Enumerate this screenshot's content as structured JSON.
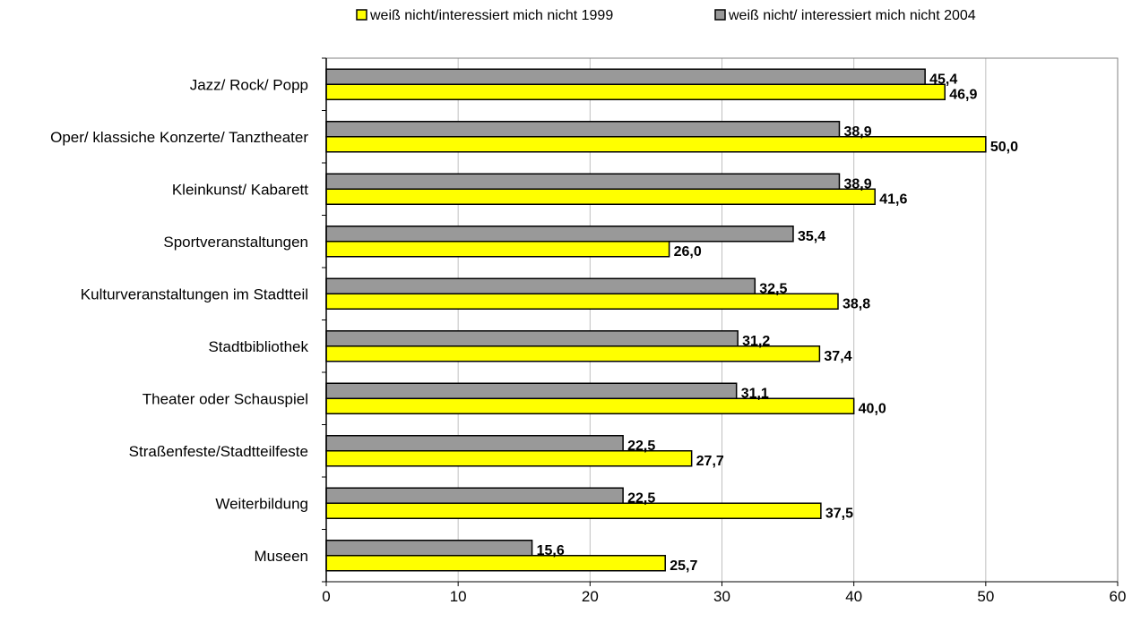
{
  "chart_data": {
    "type": "bar",
    "orientation": "horizontal",
    "categories": [
      "Jazz/ Rock/ Popp",
      "Oper/ klassiche Konzerte/ Tanztheater",
      "Kleinkunst/ Kabarett",
      "Sportveranstaltungen",
      "Kulturveranstaltungen im Stadtteil",
      "Stadtbibliothek",
      "Theater oder Schauspiel",
      "Straßenfeste/Stadtteilfeste",
      "Weiterbildung",
      "Museen"
    ],
    "series": [
      {
        "name": "weiß nicht/ interessiert mich nicht 2004",
        "color": "#999999",
        "values": [
          45.4,
          38.9,
          38.9,
          35.4,
          32.5,
          31.2,
          31.1,
          22.5,
          22.5,
          15.6
        ],
        "labels": [
          "45,4",
          "38,9",
          "38,9",
          "35,4",
          "32,5",
          "31,2",
          "31,1",
          "22,5",
          "22,5",
          "15,6"
        ]
      },
      {
        "name": "weiß nicht/interessiert mich nicht 1999",
        "color": "#ffff00",
        "values": [
          46.9,
          50.0,
          41.6,
          26.0,
          38.8,
          37.4,
          40.0,
          27.7,
          37.5,
          25.7
        ],
        "labels": [
          "46,9",
          "50,0",
          "41,6",
          "26,0",
          "38,8",
          "37,4",
          "40,0",
          "27,7",
          "37,5",
          "25,7"
        ]
      }
    ],
    "xlim": [
      0,
      60
    ],
    "xticks": [
      "0",
      "10",
      "20",
      "30",
      "40",
      "50",
      "60"
    ],
    "legend": {
      "placement": "top-right",
      "entries": [
        {
          "label": "weiß nicht/interessiert mich nicht 1999",
          "color": "#ffff00"
        },
        {
          "label": "weiß nicht/ interessiert mich nicht 2004",
          "color": "#999999"
        }
      ]
    },
    "grid": "vertical"
  }
}
